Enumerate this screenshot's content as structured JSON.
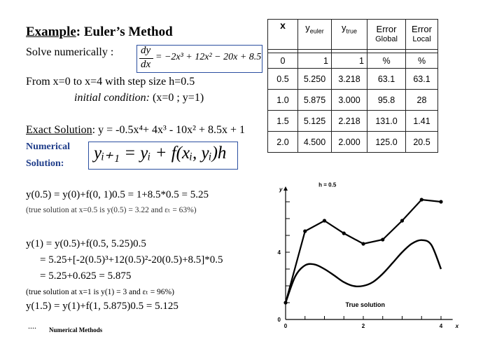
{
  "example": {
    "title_prefix": "Example",
    "title_rest": ": Euler’s Method",
    "solve_label": "Solve numerically :",
    "deriv_num": "dy",
    "deriv_den": "dx",
    "deriv_rhs": "= −2x³ + 12x² − 20x + 8.5",
    "from_line": "From x=0 to x=4 with step size h=0.5",
    "initial_label": "initial condition:",
    "initial_value": "(x=0 ; y=1)",
    "exact_label": "Exact Solution",
    "exact_eq": ": y = -0.5x⁴+ 4x³ - 10x² + 8.5x + 1",
    "numerical_label": "Numerical",
    "solution_label": "Solution:",
    "euler_formula": "yᵢ₊₁ = yᵢ + f(xᵢ, yᵢ)h"
  },
  "work": {
    "line1": "y(0.5) = y(0)+f(0, 1)0.5 = 1+8.5*0.5 = 5.25",
    "note1": "(true solution at x=0.5 is y(0.5) = 3.22  and  εₜ = 63%)",
    "line2": "y(1) = y(0.5)+f(0.5, 5.25)0.5",
    "line3": "= 5.25+[-2(0.5)³+12(0.5)²-20(0.5)+8.5]*0.5",
    "line4": "= 5.25+0.625 = 5.875",
    "note2": "(true solution at x=1 is y(1) = 3  and  εₜ = 96%)",
    "line5": "y(1.5) = y(1)+f(1, 5.875)0.5 = 5.125",
    "dots": "....",
    "footer": "Numerical Methods"
  },
  "table": {
    "headers": {
      "x": "x",
      "yeuler": "y",
      "yeuler_sub": "euler",
      "ytrue": "y",
      "ytrue_sub": "true",
      "err_global_1": "Error",
      "err_global_2": "Global",
      "err_local_1": "Error",
      "err_local_2": "Local"
    },
    "units": [
      "0",
      "1",
      "1",
      "%",
      "%"
    ],
    "rows": [
      [
        "0.5",
        "5.250",
        "3.218",
        "63.1",
        "63.1"
      ],
      [
        "1.0",
        "5.875",
        "3.000",
        "95.8",
        "28"
      ],
      [
        "1.5",
        "5.125",
        "2.218",
        "131.0",
        "1.41"
      ],
      [
        "2.0",
        "4.500",
        "2.000",
        "125.0",
        "20.5"
      ]
    ]
  },
  "chart_data": {
    "type": "line",
    "title": "",
    "xlabel": "x",
    "ylabel": "y",
    "x_ticks": [
      "0",
      "2",
      "4"
    ],
    "y_ticks": [
      "0",
      "4"
    ],
    "xlim": [
      0,
      4.3
    ],
    "ylim": [
      0,
      8
    ],
    "series": [
      {
        "name": "h = 0.5",
        "x": [
          0,
          0.5,
          1.0,
          1.5,
          2.0,
          2.5,
          3.0,
          3.5,
          4.0
        ],
        "values": [
          1,
          5.25,
          5.875,
          5.125,
          4.5,
          4.75,
          5.875,
          7.125,
          7.0
        ]
      },
      {
        "name": "True solution",
        "x": [
          0,
          0.25,
          0.5,
          0.75,
          1.0,
          1.25,
          1.5,
          1.75,
          2.0,
          2.25,
          2.5,
          2.75,
          3.0,
          3.25,
          3.5,
          3.75,
          4.0
        ],
        "values": [
          1,
          2.57,
          3.22,
          3.27,
          3.0,
          2.62,
          2.22,
          1.99,
          2.0,
          2.23,
          2.72,
          3.35,
          4.0,
          4.51,
          4.72,
          4.44,
          3.0
        ]
      }
    ],
    "annotations": [
      "h = 0.5",
      "True solution"
    ]
  }
}
